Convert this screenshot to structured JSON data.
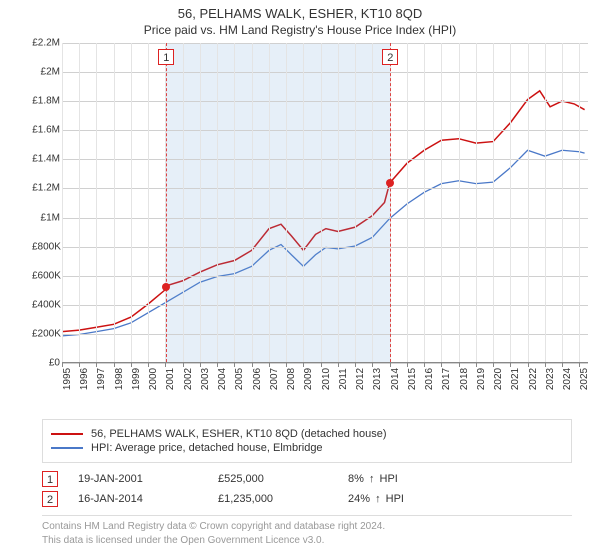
{
  "title": "56, PELHAMS WALK, ESHER, KT10 8QD",
  "subtitle": "Price paid vs. HM Land Registry's House Price Index (HPI)",
  "chart": {
    "type": "line",
    "ylim": [
      0,
      2200000
    ],
    "yticks": [
      {
        "v": 0,
        "label": "£0"
      },
      {
        "v": 200000,
        "label": "£200K"
      },
      {
        "v": 400000,
        "label": "£400K"
      },
      {
        "v": 600000,
        "label": "£600K"
      },
      {
        "v": 800000,
        "label": "£800K"
      },
      {
        "v": 1000000,
        "label": "£1M"
      },
      {
        "v": 1200000,
        "label": "£1.2M"
      },
      {
        "v": 1400000,
        "label": "£1.4M"
      },
      {
        "v": 1600000,
        "label": "£1.6M"
      },
      {
        "v": 1800000,
        "label": "£1.8M"
      },
      {
        "v": 2000000,
        "label": "£2M"
      },
      {
        "v": 2200000,
        "label": "£2.2M"
      }
    ],
    "xlim": [
      1995,
      2025.5
    ],
    "years": [
      1995,
      1996,
      1997,
      1998,
      1999,
      2000,
      2001,
      2002,
      2003,
      2004,
      2005,
      2006,
      2007,
      2008,
      2009,
      2010,
      2011,
      2012,
      2013,
      2014,
      2015,
      2016,
      2017,
      2018,
      2019,
      2020,
      2021,
      2022,
      2023,
      2024,
      2025
    ],
    "grid_color": "#d0d0d0",
    "grid_minor_color": "#e4e4e4",
    "band_color": "rgba(118,164,216,0.18)",
    "series": [
      {
        "name": "property",
        "color": "#cc1111",
        "width": 1.5,
        "data": [
          [
            1995,
            210000
          ],
          [
            1996,
            220000
          ],
          [
            1997,
            240000
          ],
          [
            1998,
            260000
          ],
          [
            1999,
            310000
          ],
          [
            2000,
            400000
          ],
          [
            2001,
            500000
          ],
          [
            2001.05,
            525000
          ],
          [
            2002,
            560000
          ],
          [
            2003,
            620000
          ],
          [
            2004,
            670000
          ],
          [
            2005,
            700000
          ],
          [
            2006,
            770000
          ],
          [
            2007,
            920000
          ],
          [
            2007.7,
            950000
          ],
          [
            2008.3,
            870000
          ],
          [
            2009,
            770000
          ],
          [
            2009.7,
            880000
          ],
          [
            2010.3,
            920000
          ],
          [
            2011,
            900000
          ],
          [
            2012,
            930000
          ],
          [
            2013,
            1010000
          ],
          [
            2013.7,
            1100000
          ],
          [
            2014,
            1235000
          ],
          [
            2015,
            1370000
          ],
          [
            2016,
            1460000
          ],
          [
            2017,
            1530000
          ],
          [
            2018,
            1540000
          ],
          [
            2019,
            1510000
          ],
          [
            2020,
            1520000
          ],
          [
            2021,
            1650000
          ],
          [
            2022,
            1810000
          ],
          [
            2022.7,
            1870000
          ],
          [
            2023.3,
            1760000
          ],
          [
            2024,
            1800000
          ],
          [
            2024.7,
            1780000
          ],
          [
            2025.3,
            1740000
          ]
        ]
      },
      {
        "name": "hpi",
        "color": "#4a78c8",
        "width": 1.3,
        "data": [
          [
            1995,
            180000
          ],
          [
            1996,
            190000
          ],
          [
            1997,
            210000
          ],
          [
            1998,
            230000
          ],
          [
            1999,
            270000
          ],
          [
            2000,
            340000
          ],
          [
            2001,
            410000
          ],
          [
            2002,
            480000
          ],
          [
            2003,
            550000
          ],
          [
            2004,
            590000
          ],
          [
            2005,
            610000
          ],
          [
            2006,
            660000
          ],
          [
            2007,
            770000
          ],
          [
            2007.7,
            810000
          ],
          [
            2008.3,
            740000
          ],
          [
            2009,
            660000
          ],
          [
            2009.7,
            740000
          ],
          [
            2010.3,
            790000
          ],
          [
            2011,
            780000
          ],
          [
            2012,
            800000
          ],
          [
            2013,
            860000
          ],
          [
            2014,
            990000
          ],
          [
            2015,
            1090000
          ],
          [
            2016,
            1170000
          ],
          [
            2017,
            1230000
          ],
          [
            2018,
            1250000
          ],
          [
            2019,
            1230000
          ],
          [
            2020,
            1240000
          ],
          [
            2021,
            1340000
          ],
          [
            2022,
            1460000
          ],
          [
            2023,
            1420000
          ],
          [
            2024,
            1460000
          ],
          [
            2025,
            1450000
          ],
          [
            2025.3,
            1440000
          ]
        ]
      }
    ],
    "markers": [
      {
        "n": "1",
        "x": 2001.05,
        "y": 525000,
        "line_color": "#d44",
        "box_top": 6
      },
      {
        "n": "2",
        "x": 2014.04,
        "y": 1235000,
        "line_color": "#d44",
        "box_top": 6
      }
    ]
  },
  "legend": [
    {
      "color": "#cc1111",
      "label": "56, PELHAMS WALK, ESHER, KT10 8QD (detached house)"
    },
    {
      "color": "#4a78c8",
      "label": "HPI: Average price, detached house, Elmbridge"
    }
  ],
  "sales": [
    {
      "n": "1",
      "date": "19-JAN-2001",
      "price": "£525,000",
      "pct": "8%",
      "arrow": "↑",
      "pct_suffix": "HPI"
    },
    {
      "n": "2",
      "date": "16-JAN-2014",
      "price": "£1,235,000",
      "pct": "24%",
      "arrow": "↑",
      "pct_suffix": "HPI"
    }
  ],
  "footer_line1": "Contains HM Land Registry data © Crown copyright and database right 2024.",
  "footer_line2": "This data is licensed under the Open Government Licence v3.0."
}
